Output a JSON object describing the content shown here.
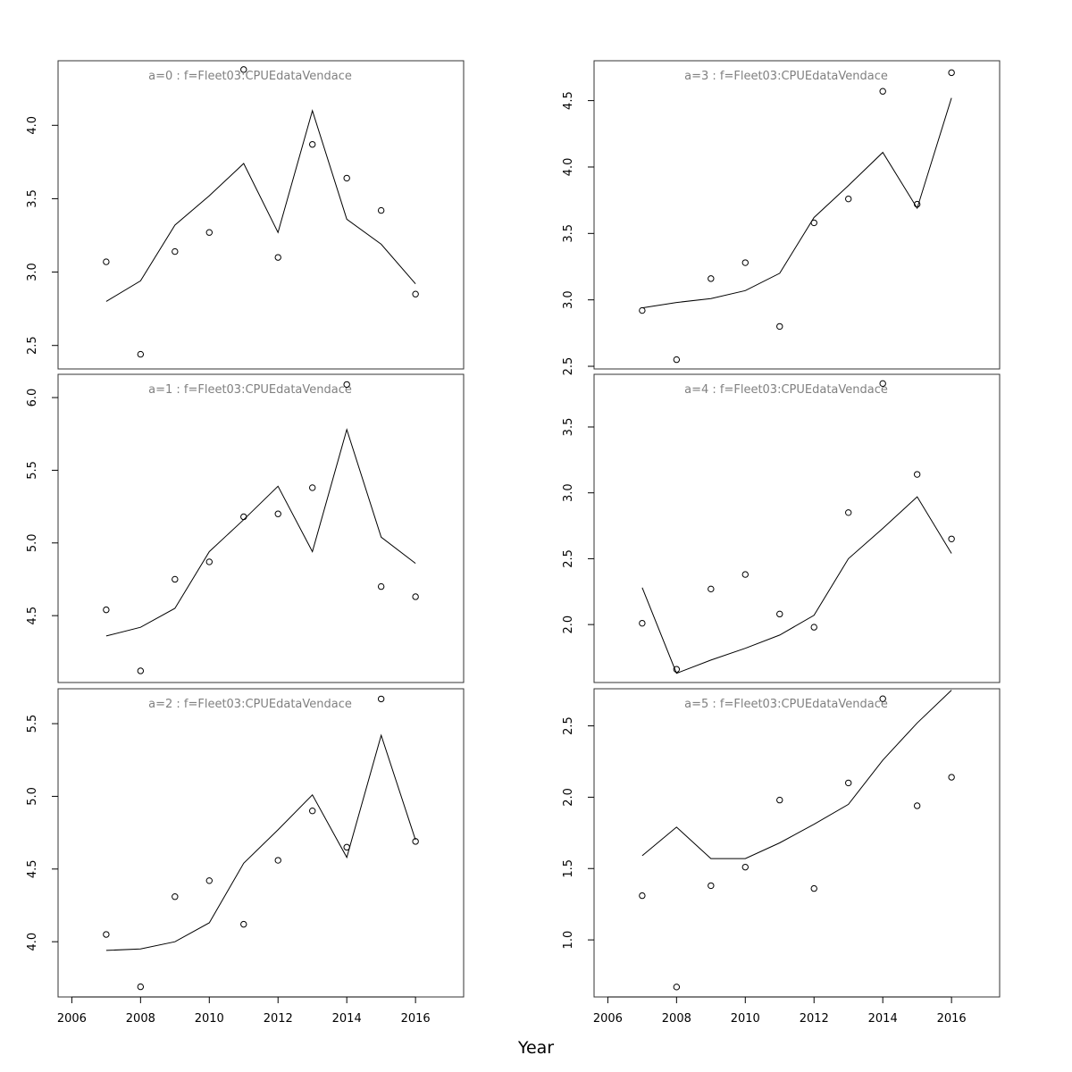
{
  "figure": {
    "xlabel": "Year",
    "shared_x_tick_labels": [
      "2006",
      "2008",
      "2010",
      "2012",
      "2014",
      "2016"
    ],
    "observed_marker": "open circle",
    "fitted_line": "solid black"
  },
  "chart_data": [
    {
      "type": "line",
      "title": "a=0  :  f=Fleet03:CPUEdataVendace",
      "x": [
        2007,
        2008,
        2009,
        2010,
        2011,
        2012,
        2013,
        2014,
        2015,
        2016
      ],
      "series": [
        {
          "kind": "observed-points",
          "values": [
            3.07,
            2.44,
            3.14,
            3.27,
            4.38,
            3.1,
            3.87,
            3.64,
            3.42,
            2.85
          ]
        },
        {
          "kind": "fitted-line",
          "values": [
            2.8,
            2.94,
            3.32,
            3.52,
            3.74,
            3.27,
            4.1,
            3.36,
            3.19,
            2.92
          ]
        }
      ],
      "xlim": [
        2005.6,
        2017.4
      ],
      "ylim": [
        2.34,
        4.44
      ],
      "yticks": [
        "2.5",
        "3.0",
        "3.5",
        "4.0"
      ],
      "show_x_axis": false
    },
    {
      "type": "line",
      "title": "a=3  :  f=Fleet03:CPUEdataVendace",
      "x": [
        2007,
        2008,
        2009,
        2010,
        2011,
        2012,
        2013,
        2014,
        2015,
        2016
      ],
      "series": [
        {
          "kind": "observed-points",
          "values": [
            2.92,
            2.55,
            3.16,
            3.28,
            2.8,
            3.58,
            3.76,
            4.57,
            3.72,
            4.71
          ]
        },
        {
          "kind": "fitted-line",
          "values": [
            2.94,
            2.98,
            3.01,
            3.07,
            3.2,
            3.62,
            3.86,
            4.11,
            3.69,
            4.52
          ]
        }
      ],
      "xlim": [
        2005.6,
        2017.4
      ],
      "ylim": [
        2.48,
        4.8
      ],
      "yticks": [
        "2.5",
        "3.0",
        "3.5",
        "4.0",
        "4.5"
      ],
      "show_x_axis": false
    },
    {
      "type": "line",
      "title": "a=1  :  f=Fleet03:CPUEdataVendace",
      "x": [
        2007,
        2008,
        2009,
        2010,
        2011,
        2012,
        2013,
        2014,
        2015,
        2016
      ],
      "series": [
        {
          "kind": "observed-points",
          "values": [
            4.54,
            4.12,
            4.75,
            4.87,
            5.18,
            5.2,
            5.38,
            6.09,
            4.7,
            4.63
          ]
        },
        {
          "kind": "fitted-line",
          "values": [
            4.36,
            4.42,
            4.55,
            4.94,
            5.16,
            5.39,
            4.94,
            5.78,
            5.04,
            4.86
          ]
        }
      ],
      "xlim": [
        2005.6,
        2017.4
      ],
      "ylim": [
        4.04,
        6.16
      ],
      "yticks": [
        "4.5",
        "5.0",
        "5.5",
        "6.0"
      ],
      "show_x_axis": false
    },
    {
      "type": "line",
      "title": "a=4  :  f=Fleet03:CPUEdataVendace",
      "x": [
        2007,
        2008,
        2009,
        2010,
        2011,
        2012,
        2013,
        2014,
        2015,
        2016
      ],
      "series": [
        {
          "kind": "observed-points",
          "values": [
            2.01,
            1.66,
            2.27,
            2.38,
            2.08,
            1.98,
            2.85,
            3.83,
            3.14,
            2.65
          ]
        },
        {
          "kind": "fitted-line",
          "values": [
            2.28,
            1.63,
            1.73,
            1.82,
            1.92,
            2.07,
            2.5,
            2.73,
            2.97,
            2.54
          ]
        }
      ],
      "xlim": [
        2005.6,
        2017.4
      ],
      "ylim": [
        1.56,
        3.9
      ],
      "yticks": [
        "2.0",
        "2.5",
        "3.0",
        "3.5"
      ],
      "show_x_axis": false
    },
    {
      "type": "line",
      "title": "a=2  :  f=Fleet03:CPUEdataVendace",
      "x": [
        2007,
        2008,
        2009,
        2010,
        2011,
        2012,
        2013,
        2014,
        2015,
        2016
      ],
      "series": [
        {
          "kind": "observed-points",
          "values": [
            4.05,
            3.69,
            4.31,
            4.42,
            4.12,
            4.56,
            4.9,
            4.65,
            5.67,
            4.69
          ]
        },
        {
          "kind": "fitted-line",
          "values": [
            3.94,
            3.95,
            4.0,
            4.13,
            4.54,
            4.77,
            5.01,
            4.58,
            5.42,
            4.7
          ]
        }
      ],
      "xlim": [
        2005.6,
        2017.4
      ],
      "ylim": [
        3.62,
        5.74
      ],
      "yticks": [
        "4.0",
        "4.5",
        "5.0",
        "5.5"
      ],
      "show_x_axis": true
    },
    {
      "type": "line",
      "title": "a=5  :  f=Fleet03:CPUEdataVendace",
      "x": [
        2007,
        2008,
        2009,
        2010,
        2011,
        2012,
        2013,
        2014,
        2015,
        2016
      ],
      "series": [
        {
          "kind": "observed-points",
          "values": [
            1.31,
            0.67,
            1.38,
            1.51,
            1.98,
            1.36,
            2.1,
            2.69,
            1.94,
            2.14
          ]
        },
        {
          "kind": "fitted-line",
          "values": [
            1.59,
            1.79,
            1.57,
            1.57,
            1.68,
            1.81,
            1.95,
            2.26,
            2.52,
            2.75
          ]
        }
      ],
      "xlim": [
        2005.6,
        2017.4
      ],
      "ylim": [
        0.6,
        2.76
      ],
      "yticks": [
        "1.0",
        "1.5",
        "2.0",
        "2.5"
      ],
      "show_x_axis": true
    }
  ]
}
